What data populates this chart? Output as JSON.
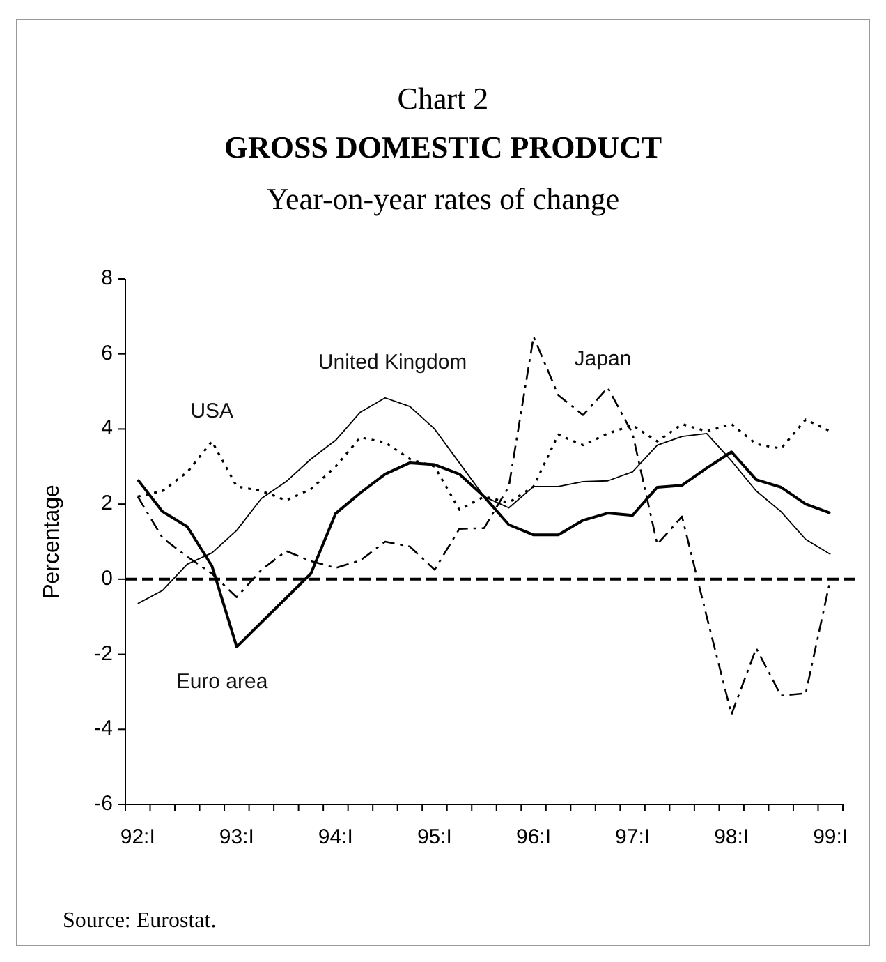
{
  "chart_data": {
    "type": "line",
    "title": "GROSS DOMESTIC PRODUCT",
    "subtitle": "Year-on-year rates of change",
    "ylabel": "Percentage",
    "annotations": [
      "Chart 2",
      "Source: Eurostat."
    ],
    "categories": [
      "92:I",
      null,
      null,
      null,
      "93:I",
      null,
      null,
      null,
      "94:I",
      null,
      null,
      null,
      "95:I",
      null,
      null,
      null,
      "96:I",
      null,
      null,
      null,
      "97:I",
      null,
      null,
      null,
      "98:I",
      null,
      null,
      null,
      "99:I"
    ],
    "ylim": [
      -6,
      8
    ],
    "yticks": [
      -6,
      -4,
      -2,
      0,
      2,
      4,
      6,
      8
    ],
    "grid": false,
    "marker": "none",
    "ref_lines": [
      {
        "axis": "y",
        "value": 0,
        "color": "#000000",
        "line_style": "dashed"
      }
    ],
    "series": [
      {
        "name": "Euro area",
        "color": "#000000",
        "line_style": "solid",
        "values": [
          2.65,
          1.8,
          1.4,
          0.35,
          -1.8,
          -1.15,
          -0.5,
          0.15,
          1.75,
          2.3,
          2.8,
          3.1,
          3.05,
          2.8,
          2.2,
          1.45,
          1.18,
          1.18,
          1.57,
          1.76,
          1.7,
          2.45,
          2.5,
          2.96,
          3.39,
          2.65,
          2.45,
          2.0,
          1.76
        ]
      },
      {
        "name": "United Kingdom",
        "color": "#000000",
        "line_style": "solid",
        "values": [
          -0.65,
          -0.3,
          0.4,
          0.7,
          1.3,
          2.15,
          2.6,
          3.2,
          3.7,
          4.45,
          4.83,
          4.6,
          4.0,
          3.1,
          2.2,
          1.9,
          2.47,
          2.47,
          2.6,
          2.62,
          2.86,
          3.57,
          3.8,
          3.88,
          3.15,
          2.35,
          1.8,
          1.06,
          0.66
        ]
      },
      {
        "name": "USA",
        "color": "#000000",
        "line_style": "dotted",
        "values": [
          2.2,
          2.35,
          2.85,
          3.67,
          2.47,
          2.35,
          2.1,
          2.4,
          3.0,
          3.78,
          3.64,
          3.2,
          3.0,
          1.85,
          2.2,
          2.04,
          2.47,
          3.85,
          3.57,
          3.88,
          4.1,
          3.67,
          4.13,
          3.94,
          4.13,
          3.6,
          3.48,
          4.25,
          3.94
        ]
      },
      {
        "name": "Japan",
        "color": "#000000",
        "line_style": "dashed",
        "values": [
          2.2,
          1.1,
          0.6,
          0.15,
          -0.48,
          0.25,
          0.75,
          0.48,
          0.3,
          0.5,
          1.0,
          0.87,
          0.25,
          1.34,
          1.36,
          2.47,
          6.46,
          4.9,
          4.37,
          5.1,
          3.88,
          0.93,
          1.67,
          -1.0,
          -3.6,
          -1.84,
          -3.1,
          -3.04,
          0.0
        ]
      }
    ]
  }
}
